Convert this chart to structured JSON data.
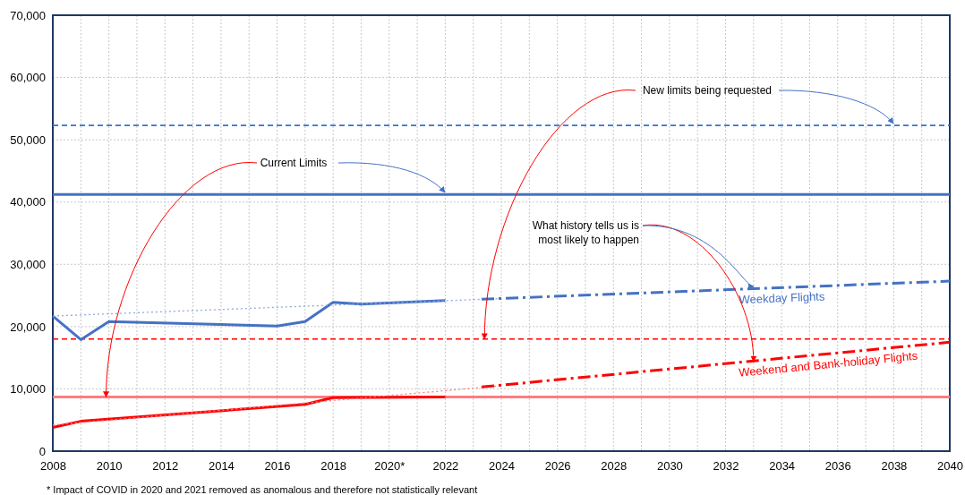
{
  "chart_data": {
    "type": "line",
    "xlim": [
      2008,
      2040
    ],
    "xticks": [
      2008,
      {
        "value": 2009,
        "label": null
      },
      2010,
      {
        "value": 2011,
        "label": null
      },
      2012,
      {
        "value": 2013,
        "label": null
      },
      2014,
      {
        "value": 2015,
        "label": null
      },
      2016,
      {
        "value": 2017,
        "label": null
      },
      2018,
      {
        "value": 2019,
        "label": null
      },
      {
        "value": 2020,
        "label": "2020*"
      },
      {
        "value": 2021,
        "label": null
      },
      2022,
      {
        "value": 2023,
        "label": null
      },
      2024,
      {
        "value": 2025,
        "label": null
      },
      2026,
      {
        "value": 2027,
        "label": null
      },
      2028,
      {
        "value": 2029,
        "label": null
      },
      2030,
      {
        "value": 2031,
        "label": null
      },
      2032,
      {
        "value": 2033,
        "label": null
      },
      2034,
      {
        "value": 2035,
        "label": null
      },
      2036,
      {
        "value": 2037,
        "label": null
      },
      2038,
      {
        "value": 2039,
        "label": null
      },
      2040
    ],
    "ylim": [
      0,
      70000
    ],
    "yticks": [
      0,
      {
        "value": 10000,
        "label": "10,000"
      },
      {
        "value": 20000,
        "label": "20,000"
      },
      {
        "value": 30000,
        "label": "30,000"
      },
      {
        "value": 40000,
        "label": "40,000"
      },
      {
        "value": 50000,
        "label": "50,000"
      },
      {
        "value": 60000,
        "label": "60,000"
      },
      {
        "value": 70000,
        "label": "70,000"
      }
    ],
    "grid": true,
    "series": [
      {
        "color": "#4472c4",
        "line_style": "solid",
        "x": [
          2008,
          2009,
          2010,
          2016,
          2017,
          2018,
          2019,
          2022
        ],
        "values": [
          21700,
          17900,
          20800,
          20100,
          20800,
          23900,
          23600,
          24200
        ]
      },
      {
        "color": "#8faadc",
        "line_style": "dotted",
        "x": [
          2008,
          2024
        ],
        "values": [
          21700,
          24500
        ]
      },
      {
        "name": "Weekday Flights",
        "color": "#4472c4",
        "line_style": "dashed",
        "x": [
          2023.3,
          2040
        ],
        "values": [
          24400,
          27300
        ]
      },
      {
        "color": "#ff0000",
        "line_style": "solid",
        "x": [
          2008,
          2009,
          2017,
          2018,
          2022
        ],
        "values": [
          3800,
          4800,
          7500,
          8600,
          8700
        ]
      },
      {
        "color": "#ff7c80",
        "line_style": "dotted",
        "x": [
          2008,
          2024
        ],
        "values": [
          4200,
          10500
        ]
      },
      {
        "name": "Weekend and Bank-holiday Flights",
        "color": "#ff0000",
        "line_style": "dashed",
        "x": [
          2023.3,
          2040
        ],
        "values": [
          10300,
          17500
        ]
      }
    ],
    "ref_lines": [
      {
        "axis": "y",
        "value": 41200,
        "color": "#4472c4",
        "line_style": "solid"
      },
      {
        "axis": "y",
        "value": 52300,
        "color": "#2e75d6",
        "line_style": "dashed"
      },
      {
        "axis": "y",
        "value": 18000,
        "color": "#ff0000",
        "line_style": "dashed"
      },
      {
        "axis": "y",
        "value": 8700,
        "color": "#ff7c80",
        "line_style": "solid"
      }
    ],
    "annotations": [
      {
        "text": "Current Limits",
        "x": 2009.9,
        "y": 8700
      },
      {
        "text": "New limits being requested",
        "x": 2023.4,
        "y": 18000
      },
      {
        "text": "What history tells us is most likely to happen",
        "x": 2033,
        "y": 14400
      },
      "* Impact of COVID in 2020 and 2021 removed as anomalous and therefore not statistically relevant"
    ]
  }
}
